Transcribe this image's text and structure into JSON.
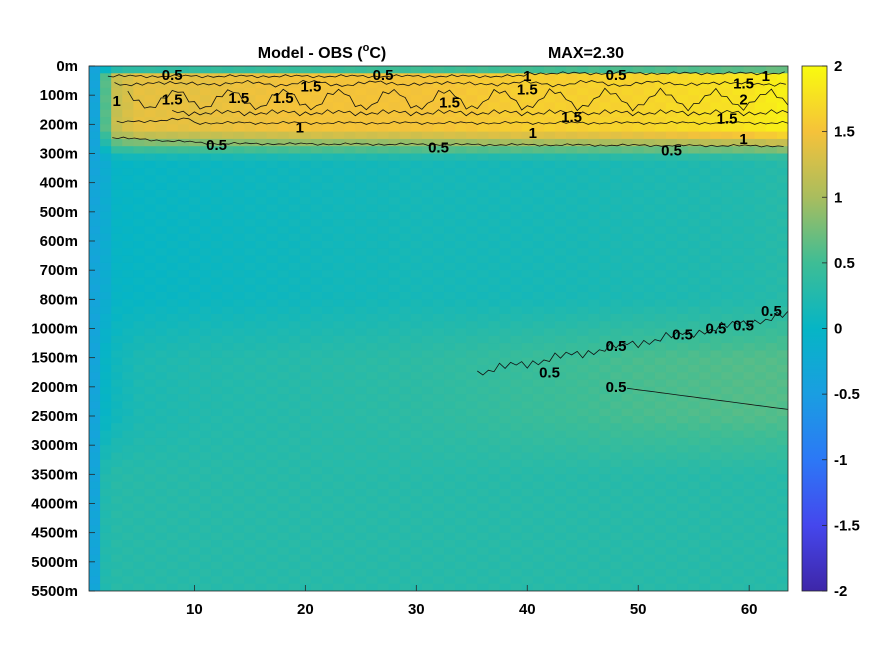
{
  "chart_data": {
    "type": "heatmap",
    "title": "Model - OBS (",
    "title_unit_sup": "o",
    "title_unit_tail": "C)",
    "max_label": "MAX=2.30",
    "xlabel": "",
    "ylabel": "",
    "colormap": "parula",
    "color_limits": [
      -2,
      2
    ],
    "x_range": [
      1,
      63
    ],
    "x_ticks": [
      {
        "value": 10,
        "label": "10"
      },
      {
        "value": 20,
        "label": "20"
      },
      {
        "value": 30,
        "label": "30"
      },
      {
        "value": 40,
        "label": "40"
      },
      {
        "value": 50,
        "label": "50"
      },
      {
        "value": 60,
        "label": "60"
      }
    ],
    "y_levels": [
      "0m",
      "100m",
      "200m",
      "300m",
      "400m",
      "500m",
      "600m",
      "700m",
      "800m",
      "1000m",
      "1500m",
      "2000m",
      "2500m",
      "3000m",
      "3500m",
      "4000m",
      "4500m",
      "5000m",
      "5500m"
    ],
    "colorbar_ticks": [
      {
        "value": 2,
        "label": "2"
      },
      {
        "value": 1.5,
        "label": "1.5"
      },
      {
        "value": 1,
        "label": "1"
      },
      {
        "value": 0.5,
        "label": "0.5"
      },
      {
        "value": 0,
        "label": "0"
      },
      {
        "value": -0.5,
        "label": "-0.5"
      },
      {
        "value": -1,
        "label": "-1"
      },
      {
        "value": -1.5,
        "label": "-1.5"
      },
      {
        "value": -2,
        "label": "-2"
      }
    ],
    "contour_levels": [
      0.5,
      1,
      1.5,
      2
    ],
    "contour_labels": [
      {
        "text": "0.5",
        "x": 8,
        "y": 0.3
      },
      {
        "text": "1.5",
        "x": 20.5,
        "y": 0.7
      },
      {
        "text": "0.5",
        "x": 27,
        "y": 0.3
      },
      {
        "text": "1",
        "x": 40,
        "y": 0.35
      },
      {
        "text": "0.5",
        "x": 48,
        "y": 0.3
      },
      {
        "text": "1.5",
        "x": 59.5,
        "y": 0.6
      },
      {
        "text": "1",
        "x": 61.5,
        "y": 0.35
      },
      {
        "text": "1",
        "x": 3,
        "y": 1.2
      },
      {
        "text": "1.5",
        "x": 8,
        "y": 1.15
      },
      {
        "text": "1.5",
        "x": 14,
        "y": 1.1
      },
      {
        "text": "1.5",
        "x": 18,
        "y": 1.1
      },
      {
        "text": "1.5",
        "x": 33,
        "y": 1.25
      },
      {
        "text": "1.5",
        "x": 40,
        "y": 0.8
      },
      {
        "text": "2",
        "x": 59.5,
        "y": 1.15
      },
      {
        "text": "1",
        "x": 19.5,
        "y": 2.1
      },
      {
        "text": "1.5",
        "x": 44,
        "y": 1.75
      },
      {
        "text": "1.5",
        "x": 58,
        "y": 1.8
      },
      {
        "text": "1",
        "x": 40.5,
        "y": 2.3
      },
      {
        "text": "1",
        "x": 59.5,
        "y": 2.5
      },
      {
        "text": "0.5",
        "x": 12,
        "y": 2.7
      },
      {
        "text": "0.5",
        "x": 32,
        "y": 2.8
      },
      {
        "text": "0.5",
        "x": 53,
        "y": 2.9
      },
      {
        "text": "0.5",
        "x": 48,
        "y": 9.6
      },
      {
        "text": "0.5",
        "x": 54,
        "y": 9.2
      },
      {
        "text": "0.5",
        "x": 57,
        "y": 9.0
      },
      {
        "text": "0.5",
        "x": 59.5,
        "y": 8.9
      },
      {
        "text": "0.5",
        "x": 62,
        "y": 8.4
      },
      {
        "text": "0.5",
        "x": 42,
        "y": 10.5
      },
      {
        "text": "0.5",
        "x": 48,
        "y": 11.0
      }
    ],
    "field_samples": {
      "description_x": [
        1,
        2,
        3,
        5,
        10,
        20,
        30,
        40,
        50,
        60,
        63
      ],
      "surface_core_0_250m": [
        -0.3,
        0.6,
        1.2,
        1.4,
        1.4,
        1.5,
        1.5,
        1.6,
        1.65,
        1.8,
        1.9
      ],
      "mid_300_800m": [
        -0.3,
        -0.2,
        0.0,
        0.02,
        0.05,
        0.1,
        0.15,
        0.15,
        0.2,
        0.25,
        0.3
      ],
      "intermediate_1500m": [
        -0.1,
        0.0,
        0.1,
        0.2,
        0.25,
        0.3,
        0.35,
        0.45,
        0.55,
        0.6,
        0.6
      ],
      "deep_3000_5500m": [
        0.2,
        0.25,
        0.3,
        0.3,
        0.3,
        0.3,
        0.3,
        0.3,
        0.3,
        0.3,
        0.3
      ]
    },
    "grid": false
  }
}
